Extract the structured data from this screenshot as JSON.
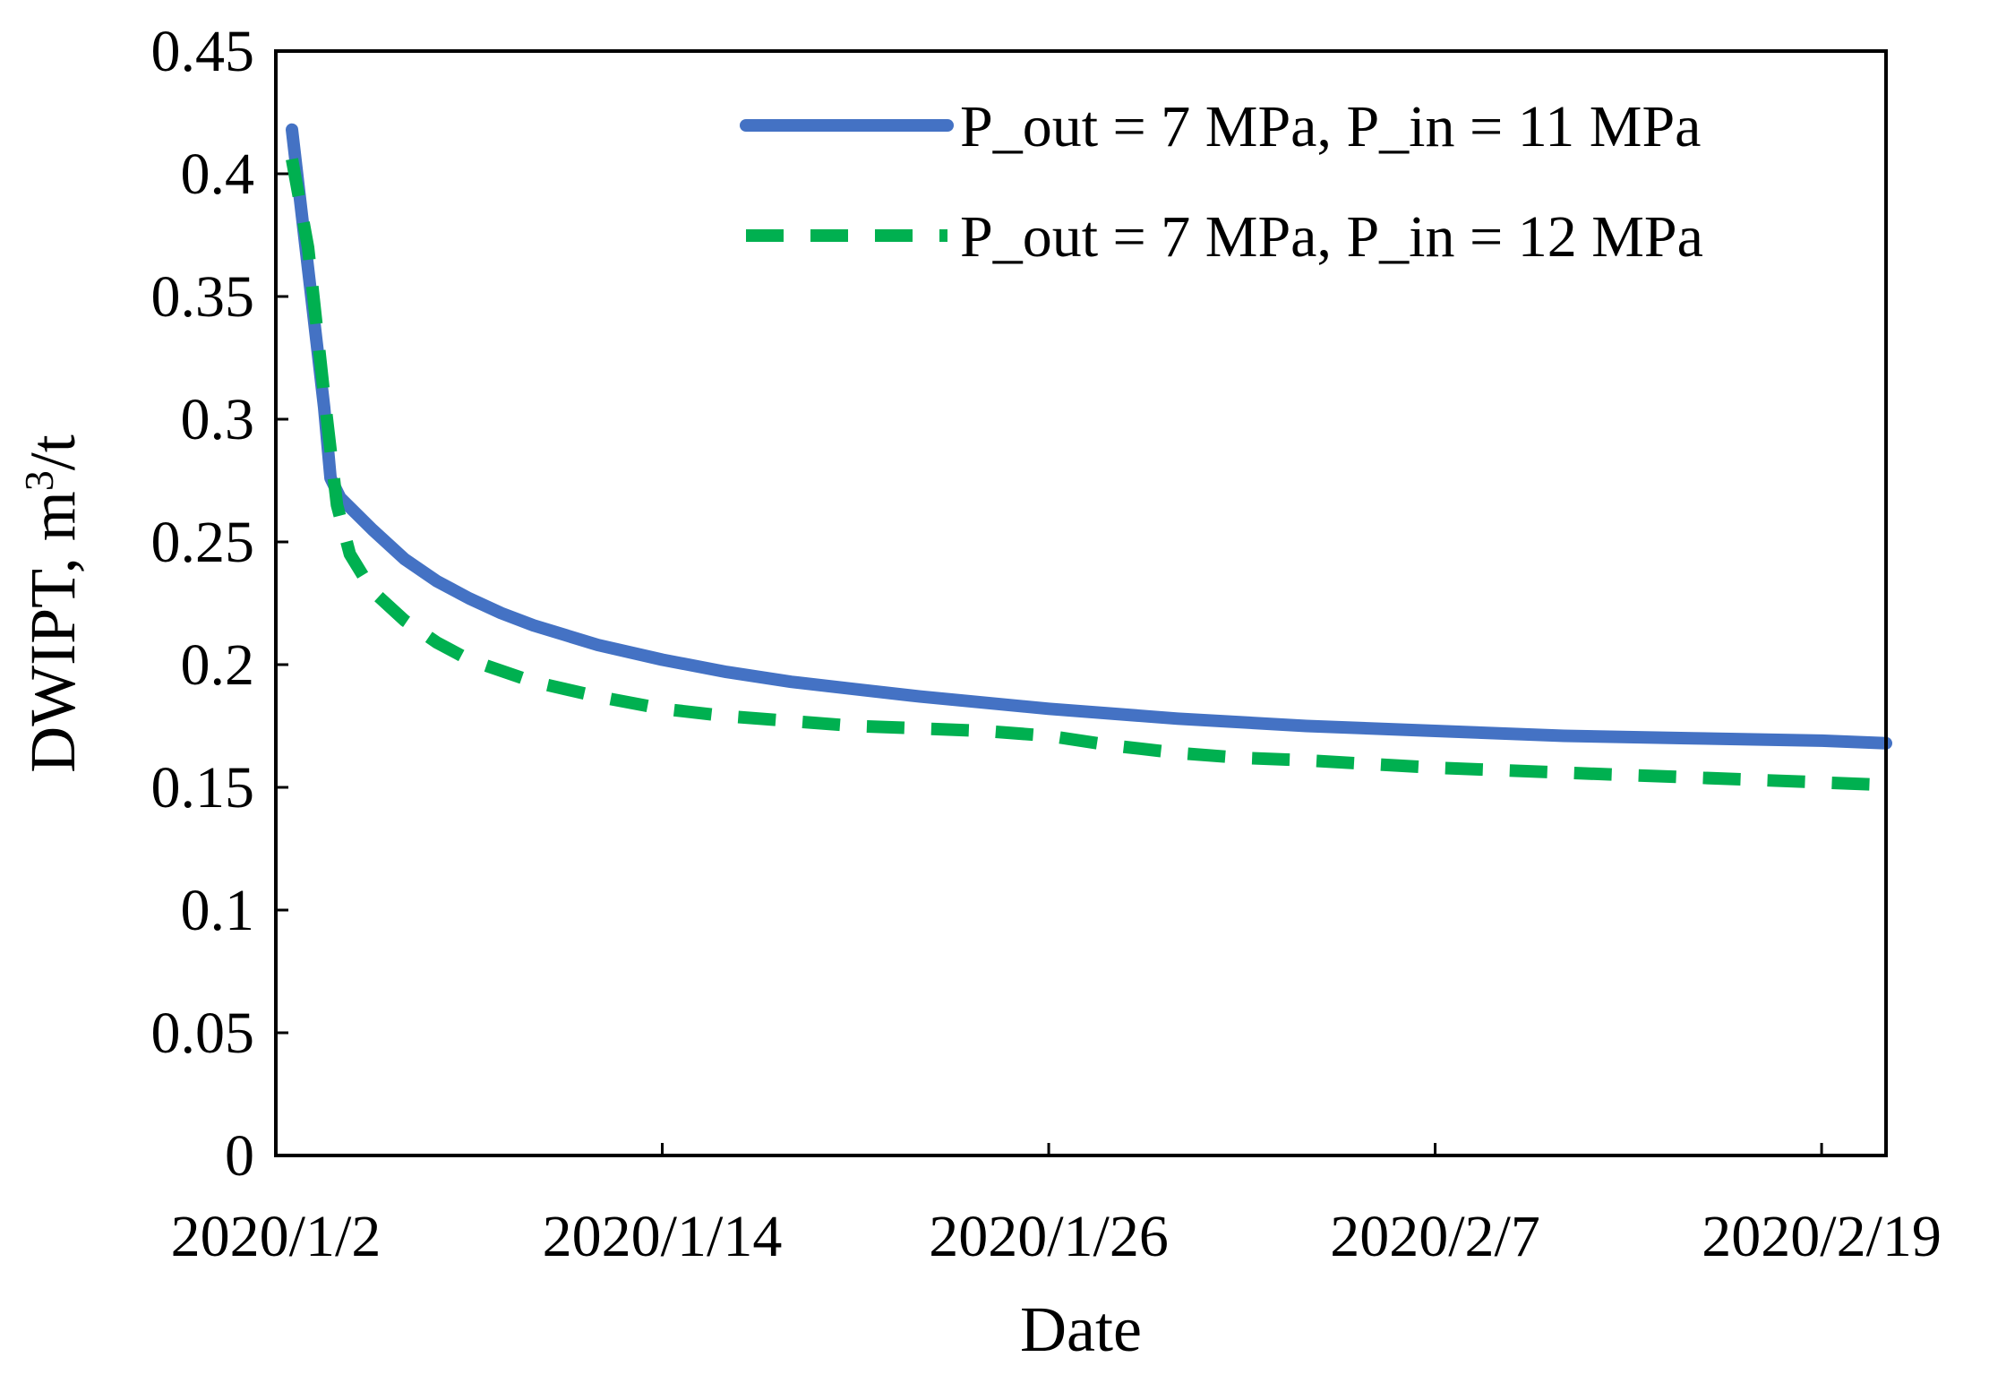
{
  "chart_data": {
    "type": "line",
    "title": "",
    "xlabel": "Date",
    "ylabel_main": "DWIPT, m",
    "ylabel_superscript": "3",
    "ylabel_suffix": "/t",
    "ylim": [
      0,
      0.45
    ],
    "xlim_days": [
      0,
      50
    ],
    "y_ticks": [
      {
        "value": 0,
        "label": "0"
      },
      {
        "value": 0.05,
        "label": "0.05"
      },
      {
        "value": 0.1,
        "label": "0.1"
      },
      {
        "value": 0.15,
        "label": "0.15"
      },
      {
        "value": 0.2,
        "label": "0.2"
      },
      {
        "value": 0.25,
        "label": "0.25"
      },
      {
        "value": 0.3,
        "label": "0.3"
      },
      {
        "value": 0.35,
        "label": "0.35"
      },
      {
        "value": 0.4,
        "label": "0.4"
      },
      {
        "value": 0.45,
        "label": "0.45"
      }
    ],
    "x_ticks": [
      {
        "value": 0,
        "label": "2020/1/2"
      },
      {
        "value": 12,
        "label": "2020/1/14"
      },
      {
        "value": 24,
        "label": "2020/1/26"
      },
      {
        "value": 36,
        "label": "2020/2/7"
      },
      {
        "value": 48,
        "label": "2020/2/19"
      }
    ],
    "grid": false,
    "legend_position": "top-right",
    "series": [
      {
        "name": "P_out = 7 MPa, P_in = 11 MPa",
        "color": "#4472C4",
        "style": "solid",
        "x": [
          0.5,
          1.5,
          1.7,
          2,
          3,
          4,
          5,
          6,
          7,
          8,
          9,
          10,
          12,
          14,
          16,
          18,
          20,
          24,
          28,
          32,
          36,
          40,
          44,
          48,
          50
        ],
        "values": [
          0.418,
          0.305,
          0.276,
          0.268,
          0.255,
          0.243,
          0.234,
          0.227,
          0.221,
          0.216,
          0.212,
          0.208,
          0.202,
          0.197,
          0.193,
          0.19,
          0.187,
          0.182,
          0.178,
          0.175,
          0.173,
          0.171,
          0.17,
          0.169,
          0.168
        ]
      },
      {
        "name": "P_out = 7 MPa, P_in = 12 MPa",
        "color": "#00B050",
        "style": "dashed",
        "x": [
          0.5,
          1.0,
          1.5,
          1.9,
          2.3,
          3,
          4,
          5,
          6,
          8,
          10,
          12,
          14,
          16,
          18,
          20,
          22,
          24,
          26,
          28,
          30,
          32,
          36,
          40,
          44,
          48,
          50
        ],
        "values": [
          0.406,
          0.37,
          0.31,
          0.265,
          0.245,
          0.23,
          0.218,
          0.209,
          0.202,
          0.193,
          0.187,
          0.182,
          0.179,
          0.177,
          0.175,
          0.174,
          0.173,
          0.171,
          0.167,
          0.164,
          0.162,
          0.161,
          0.158,
          0.156,
          0.154,
          0.152,
          0.151
        ]
      }
    ]
  }
}
